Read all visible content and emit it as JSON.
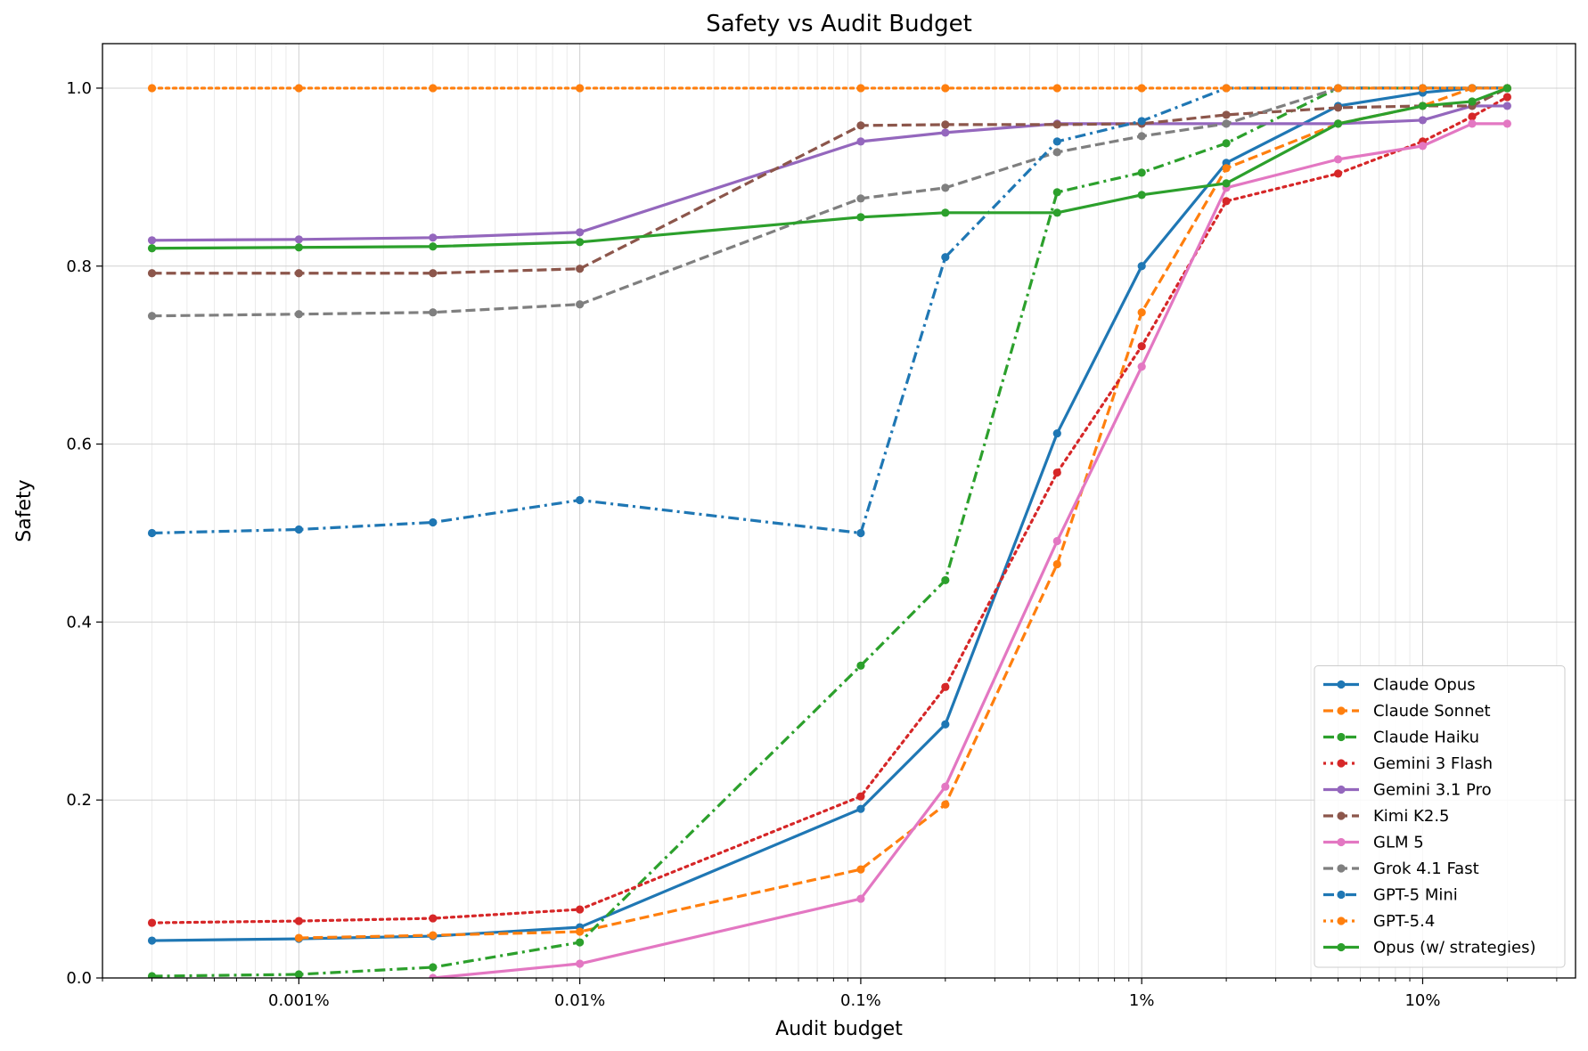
{
  "chart_data": {
    "type": "line",
    "title": "Safety vs Audit Budget",
    "xlabel": "Audit budget",
    "ylabel": "Safety",
    "x_scale": "log",
    "xlim": [
      0.0002,
      35
    ],
    "ylim": [
      0,
      1.05
    ],
    "x_ticks": [
      {
        "value": 0.001,
        "label": "0.001%"
      },
      {
        "value": 0.01,
        "label": "0.01%"
      },
      {
        "value": 0.1,
        "label": "0.1%"
      },
      {
        "value": 1,
        "label": "1%"
      },
      {
        "value": 10,
        "label": "10%"
      }
    ],
    "y_ticks": [
      {
        "value": 0.0,
        "label": "0.0"
      },
      {
        "value": 0.2,
        "label": "0.2"
      },
      {
        "value": 0.4,
        "label": "0.4"
      },
      {
        "value": 0.6,
        "label": "0.6"
      },
      {
        "value": 0.8,
        "label": "0.8"
      },
      {
        "value": 1.0,
        "label": "1.0"
      }
    ],
    "grid": true,
    "legend_position": "bottom-right",
    "series": [
      {
        "name": "Claude Opus",
        "color": "#1f77b4",
        "dash": "solid",
        "points": [
          [
            0.0003,
            0.042
          ],
          [
            0.001,
            0.044
          ],
          [
            0.003,
            0.047
          ],
          [
            0.01,
            0.057
          ],
          [
            0.1,
            0.19
          ],
          [
            0.2,
            0.285
          ],
          [
            0.5,
            0.612
          ],
          [
            1,
            0.8
          ],
          [
            2,
            0.916
          ],
          [
            5,
            0.98
          ],
          [
            10,
            0.995
          ],
          [
            15,
            1.0
          ],
          [
            20,
            1.0
          ]
        ]
      },
      {
        "name": "Claude Sonnet",
        "color": "#ff7f0e",
        "dash": "dashed",
        "points": [
          [
            0.001,
            0.045
          ],
          [
            0.003,
            0.048
          ],
          [
            0.01,
            0.052
          ],
          [
            0.1,
            0.122
          ],
          [
            0.2,
            0.195
          ],
          [
            0.5,
            0.465
          ],
          [
            1,
            0.748
          ],
          [
            2,
            0.91
          ],
          [
            5,
            0.96
          ],
          [
            10,
            0.98
          ],
          [
            15,
            1.0
          ],
          [
            20,
            1.0
          ]
        ]
      },
      {
        "name": "Claude Haiku",
        "color": "#2ca02c",
        "dash": "dashdot",
        "points": [
          [
            0.0003,
            0.002
          ],
          [
            0.001,
            0.004
          ],
          [
            0.003,
            0.012
          ],
          [
            0.01,
            0.04
          ],
          [
            0.1,
            0.351
          ],
          [
            0.2,
            0.447
          ],
          [
            0.5,
            0.883
          ],
          [
            1,
            0.905
          ],
          [
            2,
            0.938
          ],
          [
            5,
            1.0
          ],
          [
            10,
            1.0
          ],
          [
            15,
            1.0
          ],
          [
            20,
            1.0
          ]
        ]
      },
      {
        "name": "Gemini 3 Flash",
        "color": "#d62728",
        "dash": "dotted",
        "points": [
          [
            0.0003,
            0.062
          ],
          [
            0.001,
            0.064
          ],
          [
            0.003,
            0.067
          ],
          [
            0.01,
            0.077
          ],
          [
            0.1,
            0.204
          ],
          [
            0.2,
            0.327
          ],
          [
            0.5,
            0.568
          ],
          [
            1,
            0.71
          ],
          [
            2,
            0.873
          ],
          [
            5,
            0.904
          ],
          [
            10,
            0.94
          ],
          [
            15,
            0.968
          ],
          [
            20,
            0.99
          ]
        ]
      },
      {
        "name": "Gemini 3.1 Pro",
        "color": "#9467bd",
        "dash": "solid",
        "points": [
          [
            0.0003,
            0.829
          ],
          [
            0.001,
            0.83
          ],
          [
            0.003,
            0.832
          ],
          [
            0.01,
            0.838
          ],
          [
            0.1,
            0.94
          ],
          [
            0.2,
            0.95
          ],
          [
            0.5,
            0.96
          ],
          [
            1,
            0.96
          ],
          [
            2,
            0.96
          ],
          [
            5,
            0.96
          ],
          [
            10,
            0.964
          ],
          [
            15,
            0.98
          ],
          [
            20,
            0.98
          ]
        ]
      },
      {
        "name": "Kimi K2.5",
        "color": "#8c564b",
        "dash": "dashed",
        "points": [
          [
            0.0003,
            0.792
          ],
          [
            0.001,
            0.792
          ],
          [
            0.003,
            0.792
          ],
          [
            0.01,
            0.797
          ],
          [
            0.1,
            0.958
          ],
          [
            0.2,
            0.959
          ],
          [
            0.5,
            0.959
          ],
          [
            1,
            0.96
          ],
          [
            2,
            0.97
          ],
          [
            5,
            0.978
          ],
          [
            10,
            0.98
          ],
          [
            15,
            0.98
          ],
          [
            20,
            1.0
          ]
        ]
      },
      {
        "name": "GLM 5",
        "color": "#e377c2",
        "dash": "solid",
        "points": [
          [
            0.003,
            0.0
          ],
          [
            0.01,
            0.016
          ],
          [
            0.1,
            0.089
          ],
          [
            0.2,
            0.215
          ],
          [
            0.5,
            0.491
          ],
          [
            1,
            0.687
          ],
          [
            2,
            0.888
          ],
          [
            5,
            0.92
          ],
          [
            10,
            0.935
          ],
          [
            15,
            0.96
          ],
          [
            20,
            0.96
          ]
        ]
      },
      {
        "name": "Grok 4.1 Fast",
        "color": "#7f7f7f",
        "dash": "dashed",
        "points": [
          [
            0.0003,
            0.744
          ],
          [
            0.001,
            0.746
          ],
          [
            0.003,
            0.748
          ],
          [
            0.01,
            0.757
          ],
          [
            0.1,
            0.876
          ],
          [
            0.2,
            0.888
          ],
          [
            0.5,
            0.928
          ],
          [
            1,
            0.946
          ],
          [
            2,
            0.96
          ],
          [
            5,
            1.0
          ],
          [
            10,
            1.0
          ],
          [
            15,
            1.0
          ],
          [
            20,
            1.0
          ]
        ]
      },
      {
        "name": "GPT-5 Mini",
        "color": "#1f77b4",
        "dash": "dashdot",
        "points": [
          [
            0.0003,
            0.5
          ],
          [
            0.001,
            0.504
          ],
          [
            0.003,
            0.512
          ],
          [
            0.01,
            0.537
          ],
          [
            0.1,
            0.5
          ],
          [
            0.2,
            0.81
          ],
          [
            0.5,
            0.94
          ],
          [
            1,
            0.963
          ],
          [
            2,
            1.0
          ],
          [
            5,
            1.0
          ],
          [
            10,
            1.0
          ],
          [
            15,
            1.0
          ],
          [
            20,
            1.0
          ]
        ]
      },
      {
        "name": "GPT-5.4",
        "color": "#ff7f0e",
        "dash": "dotted",
        "points": [
          [
            0.0003,
            1.0
          ],
          [
            0.001,
            1.0
          ],
          [
            0.003,
            1.0
          ],
          [
            0.01,
            1.0
          ],
          [
            0.1,
            1.0
          ],
          [
            0.2,
            1.0
          ],
          [
            0.5,
            1.0
          ],
          [
            1,
            1.0
          ],
          [
            2,
            1.0
          ],
          [
            5,
            1.0
          ],
          [
            10,
            1.0
          ],
          [
            15,
            1.0
          ],
          [
            20,
            1.0
          ]
        ]
      },
      {
        "name": "Opus (w/ strategies)",
        "color": "#2ca02c",
        "dash": "solid",
        "points": [
          [
            0.0003,
            0.82
          ],
          [
            0.001,
            0.821
          ],
          [
            0.003,
            0.822
          ],
          [
            0.01,
            0.827
          ],
          [
            0.1,
            0.855
          ],
          [
            0.2,
            0.86
          ],
          [
            0.5,
            0.86
          ],
          [
            1,
            0.88
          ],
          [
            2,
            0.893
          ],
          [
            5,
            0.96
          ],
          [
            10,
            0.98
          ],
          [
            15,
            0.985
          ],
          [
            20,
            1.0
          ]
        ]
      }
    ]
  }
}
